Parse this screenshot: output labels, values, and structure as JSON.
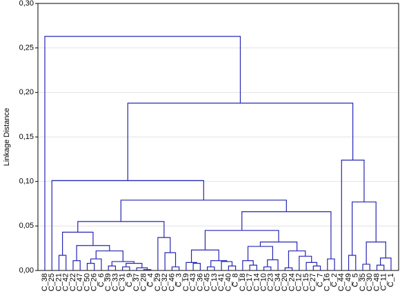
{
  "chart_data": {
    "type": "dendrogram",
    "ylabel": "Linkage Distance",
    "color": "#2424b4",
    "grid": true,
    "ylim": [
      0,
      0.3
    ],
    "yticks": [
      {
        "value": 0,
        "label": "0,00"
      },
      {
        "value": 0.05,
        "label": "0,05"
      },
      {
        "value": 0.1,
        "label": "0,10"
      },
      {
        "value": 0.15,
        "label": "0,15"
      },
      {
        "value": 0.2,
        "label": "0,20"
      },
      {
        "value": 0.25,
        "label": "0,25"
      },
      {
        "value": 0.3,
        "label": "0,30"
      }
    ],
    "tree": {
      "height": 0.263,
      "children": [
        {
          "label": "C_38"
        },
        {
          "height": 0.188,
          "children": [
            {
              "height": 0.101,
              "children": [
                {
                  "label": "C_25"
                },
                {
                  "height": 0.079,
                  "children": [
                    {
                      "height": 0.055,
                      "children": [
                        {
                          "height": 0.043,
                          "children": [
                            {
                              "height": 0.017,
                              "children": [
                                {
                                  "label": "C_21"
                                },
                                {
                                  "label": "C_42"
                                }
                              ]
                            },
                            {
                              "height": 0.028,
                              "children": [
                                {
                                  "height": 0.011,
                                  "children": [
                                    {
                                      "label": "C_22"
                                    },
                                    {
                                      "label": "C_47"
                                    }
                                  ]
                                },
                                {
                                  "height": 0.022,
                                  "children": [
                                    {
                                      "height": 0.013,
                                      "children": [
                                        {
                                          "height": 0.008,
                                          "children": [
                                            {
                                              "label": "C_50"
                                            },
                                            {
                                              "label": "C_26"
                                            }
                                          ]
                                        },
                                        {
                                          "label": "C_6"
                                        }
                                      ]
                                    },
                                    {
                                      "height": 0.01,
                                      "children": [
                                        {
                                          "height": 0.005,
                                          "children": [
                                            {
                                              "label": "C_39"
                                            },
                                            {
                                              "label": "C_33"
                                            }
                                          ]
                                        },
                                        {
                                          "height": 0.008,
                                          "children": [
                                            {
                                              "height": 0.004,
                                              "children": [
                                                {
                                                  "label": "C_31"
                                                },
                                                {
                                                  "label": "C_9"
                                                }
                                              ]
                                            },
                                            {
                                              "height": 0.003,
                                              "children": [
                                                {
                                                  "label": "C_37"
                                                },
                                                {
                                                  "height": 0.001,
                                                  "children": [
                                                    {
                                                      "label": "C_28"
                                                    },
                                                    {
                                                      "label": "C_4"
                                                    }
                                                  ]
                                                }
                                              ]
                                            }
                                          ]
                                        }
                                      ]
                                    }
                                  ]
                                }
                              ]
                            }
                          ]
                        },
                        {
                          "height": 0.037,
                          "children": [
                            {
                              "label": "C_29"
                            },
                            {
                              "height": 0.02,
                              "children": [
                                {
                                  "label": "C_32"
                                },
                                {
                                  "height": 0.004,
                                  "children": [
                                    {
                                      "label": "C_46"
                                    },
                                    {
                                      "label": "C_3"
                                    }
                                  ]
                                }
                              ]
                            }
                          ]
                        }
                      ]
                    },
                    {
                      "height": 0.066,
                      "children": [
                        {
                          "height": 0.045,
                          "children": [
                            {
                              "height": 0.023,
                              "children": [
                                {
                                  "height": 0.009,
                                  "children": [
                                    {
                                      "label": "C_19"
                                    },
                                    {
                                      "height": 0.008,
                                      "children": [
                                        {
                                          "label": "C_43"
                                        },
                                        {
                                          "label": "C_36"
                                        }
                                      ]
                                    }
                                  ]
                                },
                                {
                                  "height": 0.011,
                                  "children": [
                                    {
                                      "height": 0.004,
                                      "children": [
                                        {
                                          "label": "C_45"
                                        },
                                        {
                                          "label": "C_13"
                                        }
                                      ]
                                    },
                                    {
                                      "height": 0.01,
                                      "children": [
                                        {
                                          "label": "C_41"
                                        },
                                        {
                                          "height": 0.005,
                                          "children": [
                                            {
                                              "label": "C_40"
                                            },
                                            {
                                              "label": "C_8"
                                            }
                                          ]
                                        }
                                      ]
                                    }
                                  ]
                                }
                              ]
                            },
                            {
                              "height": 0.032,
                              "children": [
                                {
                                  "height": 0.027,
                                  "children": [
                                    {
                                      "height": 0.011,
                                      "children": [
                                        {
                                          "label": "C_18"
                                        },
                                        {
                                          "height": 0.006,
                                          "children": [
                                            {
                                              "label": "C_17"
                                            },
                                            {
                                              "label": "C_14"
                                            }
                                          ]
                                        }
                                      ]
                                    },
                                    {
                                      "height": 0.012,
                                      "children": [
                                        {
                                          "height": 0.004,
                                          "children": [
                                            {
                                              "label": "C_10"
                                            },
                                            {
                                              "label": "C_23"
                                            }
                                          ]
                                        },
                                        {
                                          "label": "C_34"
                                        }
                                      ]
                                    }
                                  ]
                                },
                                {
                                  "height": 0.022,
                                  "children": [
                                    {
                                      "height": 0.003,
                                      "children": [
                                        {
                                          "label": "C_20"
                                        },
                                        {
                                          "label": "C_24"
                                        }
                                      ]
                                    },
                                    {
                                      "height": 0.016,
                                      "children": [
                                        {
                                          "label": "C_12"
                                        },
                                        {
                                          "height": 0.009,
                                          "children": [
                                            {
                                              "label": "C_15"
                                            },
                                            {
                                              "height": 0.005,
                                              "children": [
                                                {
                                                  "label": "C_27"
                                                },
                                                {
                                                  "label": "C_7"
                                                }
                                              ]
                                            }
                                          ]
                                        }
                                      ]
                                    }
                                  ]
                                }
                              ]
                            }
                          ]
                        },
                        {
                          "height": 0.013,
                          "children": [
                            {
                              "label": "C_16"
                            },
                            {
                              "label": "C_2"
                            }
                          ]
                        }
                      ]
                    }
                  ]
                }
              ]
            },
            {
              "height": 0.124,
              "children": [
                {
                  "label": "C_44"
                },
                {
                  "height": 0.077,
                  "children": [
                    {
                      "height": 0.017,
                      "children": [
                        {
                          "label": "C_49"
                        },
                        {
                          "label": "C_5"
                        }
                      ]
                    },
                    {
                      "height": 0.032,
                      "children": [
                        {
                          "height": 0.007,
                          "children": [
                            {
                              "label": "C_35"
                            },
                            {
                              "label": "C_30"
                            }
                          ]
                        },
                        {
                          "height": 0.014,
                          "children": [
                            {
                              "height": 0.006,
                              "children": [
                                {
                                  "label": "C_48"
                                },
                                {
                                  "label": "C_11"
                                }
                              ]
                            },
                            {
                              "label": "C_1"
                            }
                          ]
                        }
                      ]
                    }
                  ]
                }
              ]
            }
          ]
        }
      ]
    }
  }
}
